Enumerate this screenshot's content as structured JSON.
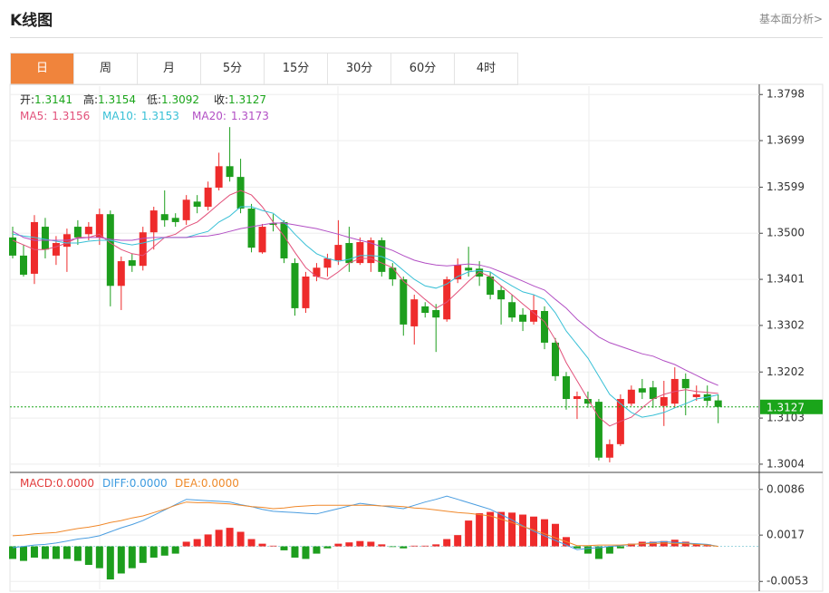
{
  "header": {
    "title": "K线图",
    "link": "基本面分析>"
  },
  "tabs": [
    {
      "label": "日",
      "active": true
    },
    {
      "label": "周",
      "active": false
    },
    {
      "label": "月",
      "active": false
    },
    {
      "label": "5分",
      "active": false
    },
    {
      "label": "15分",
      "active": false
    },
    {
      "label": "30分",
      "active": false
    },
    {
      "label": "60分",
      "active": false
    },
    {
      "label": "4时",
      "active": false
    }
  ],
  "chart_data": [
    {
      "type": "candlestick",
      "ohlc_labels": [
        "开:",
        "高:",
        "低:",
        "收:"
      ],
      "up_color": "#ee2b2b",
      "down_color": "#1d9e1d",
      "grid": true,
      "open": [
        1.3491,
        1.3452,
        1.3413,
        1.3514,
        1.3452,
        1.3471,
        1.3514,
        1.3498,
        1.3491,
        1.3541,
        1.3387,
        1.3442,
        1.343,
        1.3502,
        1.3541,
        1.3533,
        1.3528,
        1.3568,
        1.3557,
        1.3598,
        1.3644,
        1.3621,
        1.3553,
        1.3459,
        1.3522,
        1.3524,
        1.3436,
        1.3339,
        1.3407,
        1.3426,
        1.3442,
        1.3479,
        1.3436,
        1.3436,
        1.3485,
        1.3426,
        1.3401,
        1.33,
        1.3343,
        1.3335,
        1.3315,
        1.3401,
        1.3426,
        1.3424,
        1.3407,
        1.3378,
        1.3352,
        1.3325,
        1.331,
        1.3333,
        1.3265,
        1.3193,
        1.3144,
        1.3144,
        1.3138,
        1.3018,
        1.3047,
        1.3134,
        1.3167,
        1.3169,
        1.3129,
        1.3134,
        1.3187,
        1.3148,
        1.3154,
        1.3141
      ],
      "high": [
        1.3514,
        1.3475,
        1.3539,
        1.3533,
        1.3494,
        1.351,
        1.3528,
        1.3524,
        1.3553,
        1.3549,
        1.345,
        1.3456,
        1.3514,
        1.3557,
        1.3592,
        1.3543,
        1.3582,
        1.3582,
        1.3611,
        1.3673,
        1.3728,
        1.366,
        1.3563,
        1.352,
        1.3541,
        1.3528,
        1.3446,
        1.3417,
        1.3436,
        1.3456,
        1.3528,
        1.3514,
        1.3491,
        1.3491,
        1.3491,
        1.3436,
        1.3407,
        1.3368,
        1.3352,
        1.3348,
        1.3407,
        1.3446,
        1.3471,
        1.344,
        1.3417,
        1.3387,
        1.3368,
        1.3339,
        1.3368,
        1.3343,
        1.3275,
        1.3202,
        1.316,
        1.316,
        1.3144,
        1.3057,
        1.3154,
        1.3173,
        1.3187,
        1.3183,
        1.3183,
        1.3212,
        1.3199,
        1.3173,
        1.3173,
        1.3154
      ],
      "low": [
        1.3446,
        1.3407,
        1.3391,
        1.3446,
        1.3432,
        1.3417,
        1.3475,
        1.3485,
        1.3475,
        1.3343,
        1.3335,
        1.3417,
        1.342,
        1.3465,
        1.3514,
        1.3514,
        1.3518,
        1.3543,
        1.3549,
        1.3592,
        1.3611,
        1.3543,
        1.3459,
        1.3456,
        1.3504,
        1.3436,
        1.3323,
        1.3329,
        1.3397,
        1.3407,
        1.3432,
        1.3417,
        1.3432,
        1.3417,
        1.3407,
        1.3387,
        1.328,
        1.3261,
        1.3319,
        1.3245,
        1.331,
        1.3393,
        1.3407,
        1.3387,
        1.3358,
        1.3304,
        1.331,
        1.329,
        1.3304,
        1.3251,
        1.3183,
        1.3121,
        1.3101,
        1.3125,
        1.3012,
        1.3008,
        1.3043,
        1.3129,
        1.3144,
        1.3125,
        1.3086,
        1.3125,
        1.3109,
        1.314,
        1.3129,
        1.3092
      ],
      "close": [
        1.3452,
        1.3411,
        1.3524,
        1.3465,
        1.3479,
        1.3498,
        1.3491,
        1.3514,
        1.3541,
        1.3387,
        1.344,
        1.343,
        1.3502,
        1.3549,
        1.3528,
        1.3524,
        1.3572,
        1.3557,
        1.3598,
        1.3644,
        1.3621,
        1.3553,
        1.3469,
        1.3514,
        1.3518,
        1.3446,
        1.3339,
        1.3407,
        1.3426,
        1.3446,
        1.3475,
        1.3436,
        1.3481,
        1.3485,
        1.3417,
        1.3401,
        1.3304,
        1.3358,
        1.3329,
        1.3319,
        1.3401,
        1.3432,
        1.342,
        1.3407,
        1.3368,
        1.3358,
        1.3319,
        1.331,
        1.3335,
        1.3265,
        1.3193,
        1.3144,
        1.315,
        1.3134,
        1.3018,
        1.3047,
        1.3144,
        1.3164,
        1.3158,
        1.3144,
        1.3148,
        1.3187,
        1.3167,
        1.3154,
        1.314,
        1.3127
      ],
      "series": [
        {
          "name": "MA5:",
          "color": "#e2507a",
          "values": [
            1.3485,
            1.3475,
            1.3465,
            1.3465,
            1.3471,
            1.3479,
            1.3491,
            1.3491,
            1.3498,
            1.3479,
            1.3465,
            1.3456,
            1.3452,
            1.3471,
            1.3491,
            1.3498,
            1.3514,
            1.3524,
            1.3543,
            1.3563,
            1.3582,
            1.3592,
            1.3582,
            1.3557,
            1.3524,
            1.3494,
            1.3459,
            1.3426,
            1.3407,
            1.3401,
            1.3417,
            1.3436,
            1.3446,
            1.3446,
            1.3436,
            1.3426,
            1.3397,
            1.3378,
            1.3358,
            1.3339,
            1.3352,
            1.3374,
            1.3397,
            1.3417,
            1.3407,
            1.3387,
            1.3368,
            1.3348,
            1.3329,
            1.331,
            1.3271,
            1.3222,
            1.3183,
            1.3144,
            1.3105,
            1.3086,
            1.3096,
            1.3105,
            1.3125,
            1.3144,
            1.3154,
            1.316,
            1.3164,
            1.316,
            1.3158,
            1.3156
          ]
        },
        {
          "name": "MA10:",
          "color": "#38c0d6",
          "values": [
            1.3498,
            1.3494,
            1.3491,
            1.3487,
            1.3483,
            1.3479,
            1.3479,
            1.3483,
            1.3485,
            1.3485,
            1.3479,
            1.3475,
            1.3479,
            1.3485,
            1.3491,
            1.3491,
            1.3491,
            1.3498,
            1.3504,
            1.3524,
            1.3537,
            1.3557,
            1.3557,
            1.3549,
            1.3543,
            1.3524,
            1.3498,
            1.3475,
            1.3456,
            1.3446,
            1.344,
            1.3444,
            1.3452,
            1.3452,
            1.345,
            1.344,
            1.342,
            1.3401,
            1.3387,
            1.3382,
            1.3391,
            1.3407,
            1.3417,
            1.342,
            1.3417,
            1.3401,
            1.3387,
            1.3374,
            1.3368,
            1.3358,
            1.3329,
            1.329,
            1.3261,
            1.3232,
            1.3193,
            1.3154,
            1.3134,
            1.3115,
            1.3105,
            1.3109,
            1.3115,
            1.3125,
            1.3134,
            1.3144,
            1.3148,
            1.3153
          ]
        },
        {
          "name": "MA20:",
          "color": "#b24fc4",
          "values": [
            1.3504,
            1.3491,
            1.3485,
            1.3485,
            1.3485,
            1.3485,
            1.3489,
            1.3491,
            1.3491,
            1.3487,
            1.3485,
            1.3485,
            1.3489,
            1.3491,
            1.3491,
            1.3491,
            1.3491,
            1.3493,
            1.3494,
            1.3498,
            1.3504,
            1.351,
            1.3514,
            1.3518,
            1.3522,
            1.3522,
            1.3518,
            1.3514,
            1.351,
            1.3504,
            1.3498,
            1.3491,
            1.3485,
            1.3479,
            1.3471,
            1.3463,
            1.3452,
            1.3442,
            1.3436,
            1.3432,
            1.343,
            1.3432,
            1.3434,
            1.3432,
            1.3426,
            1.3417,
            1.3407,
            1.3397,
            1.3387,
            1.3378,
            1.3358,
            1.3339,
            1.3315,
            1.3296,
            1.3277,
            1.3265,
            1.3257,
            1.3249,
            1.3241,
            1.3236,
            1.3226,
            1.3218,
            1.3206,
            1.3195,
            1.3183,
            1.3173
          ]
        }
      ],
      "last_color": "#1aa51a",
      "ylim": [
        1.2998,
        1.3816
      ],
      "yticks": [
        1.3798,
        1.3699,
        1.3599,
        {
          "value": 1.35,
          "label": "1.3500"
        },
        1.3401,
        1.3302,
        1.3202,
        1.3103,
        1.3004
      ]
    },
    {
      "type": "macd",
      "grid": true,
      "up_color": "#ee2b2b",
      "down_color": "#1d9e1d",
      "readouts": [
        {
          "label": "MACD:",
          "text": "0.0000",
          "color": "#e23a3a"
        },
        {
          "label": "DIFF:",
          "text": "0.0000",
          "color": "#3d9be0"
        },
        {
          "label": "DEA:",
          "text": "0.0000",
          "color": "#ef8a2a"
        }
      ],
      "values": [
        -0.0019,
        -0.0022,
        -0.0017,
        -0.0019,
        -0.0019,
        -0.0019,
        -0.0022,
        -0.0028,
        -0.0033,
        -0.005,
        -0.0041,
        -0.0033,
        -0.0025,
        -0.0017,
        -0.0014,
        -0.0011,
        0.0007,
        0.0011,
        0.0018,
        0.0025,
        0.0028,
        0.0022,
        0.0011,
        0.0004,
        0.0001,
        -0.0006,
        -0.0017,
        -0.0019,
        -0.0011,
        -0.0003,
        0.0004,
        0.0006,
        0.0008,
        0.0007,
        0.0003,
        -0.0001,
        -0.0003,
        0.0001,
        0.0001,
        0.0003,
        0.0011,
        0.0017,
        0.0039,
        0.005,
        0.0052,
        0.0052,
        0.0051,
        0.0048,
        0.0045,
        0.0041,
        0.0034,
        0.0014,
        -0.0003,
        -0.0011,
        -0.0019,
        -0.0011,
        -0.0003,
        0.0004,
        0.0007,
        0.0007,
        0.0008,
        0.001,
        0.0007,
        0.0004,
        0.0003,
        0
      ],
      "series": [
        {
          "color": "#4a9de0",
          "values": [
            -0.0002,
            0,
            0.0002,
            0.0003,
            0.0005,
            0.0008,
            0.0011,
            0.0013,
            0.0016,
            0.0022,
            0.0028,
            0.0033,
            0.0039,
            0.0047,
            0.0055,
            0.0063,
            0.0071,
            0.007,
            0.0069,
            0.0068,
            0.0067,
            0.0063,
            0.006,
            0.0056,
            0.0053,
            0.0052,
            0.0051,
            0.005,
            0.0049,
            0.0053,
            0.0057,
            0.0061,
            0.0065,
            0.0063,
            0.0061,
            0.0059,
            0.0057,
            0.0062,
            0.0067,
            0.0071,
            0.0076,
            0.0071,
            0.0066,
            0.0061,
            0.0056,
            0.0048,
            0.004,
            0.0031,
            0.0023,
            0.0016,
            0.0009,
            0.0002,
            -0.0005,
            -0.0003,
            -0.0002,
            0,
            0.0001,
            0.0003,
            0.0004,
            0.0006,
            0.0007,
            0.0006,
            0.0005,
            0.0004,
            0.0003,
            0
          ]
        },
        {
          "color": "#f0882a",
          "values": [
            0.0016,
            0.0017,
            0.0019,
            0.002,
            0.0021,
            0.0024,
            0.0027,
            0.0029,
            0.0032,
            0.0036,
            0.0039,
            0.0043,
            0.0046,
            0.0051,
            0.0056,
            0.0062,
            0.0067,
            0.0066,
            0.0066,
            0.0065,
            0.0064,
            0.0062,
            0.006,
            0.0059,
            0.0057,
            0.0058,
            0.006,
            0.0061,
            0.0062,
            0.0062,
            0.0062,
            0.0062,
            0.0062,
            0.0062,
            0.0061,
            0.0061,
            0.006,
            0.0058,
            0.0057,
            0.0055,
            0.0053,
            0.0051,
            0.005,
            0.0048,
            0.0046,
            0.0041,
            0.0036,
            0.003,
            0.0025,
            0.0019,
            0.0013,
            0.0007,
            0.0001,
            0.0001,
            0.0002,
            0.0002,
            0.0002,
            0.0003,
            0.0004,
            0.0004,
            0.0005,
            0.0004,
            0.0004,
            0.0003,
            0.0002,
            0
          ]
        }
      ],
      "ylim": [
        -0.0065,
        0.0109
      ],
      "yticks": [
        0.0086,
        0.0017,
        -0.0053
      ]
    }
  ]
}
